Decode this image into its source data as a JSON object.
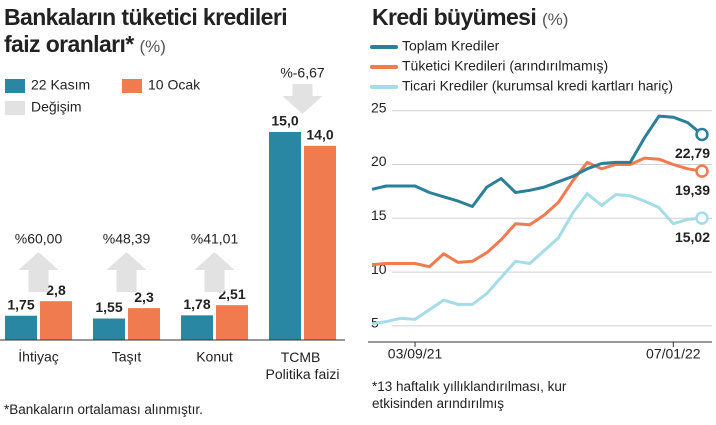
{
  "chart_data": [
    {
      "type": "bar",
      "title": "Bankaların tüketici kredileri faiz oranları*",
      "title_unit": "(%)",
      "categories": [
        "İhtiyaç",
        "Taşıt",
        "Konut",
        "TCMB Politika faizi"
      ],
      "series": [
        {
          "name": "22 Kasım",
          "color": "#2a87a3",
          "values": [
            1.75,
            1.55,
            1.78,
            15.0
          ],
          "value_labels": [
            "1,75",
            "1,55",
            "1,78",
            "15,0"
          ]
        },
        {
          "name": "10 Ocak",
          "color": "#f07b4f",
          "values": [
            2.8,
            2.3,
            2.51,
            14.0
          ],
          "value_labels": [
            "2,8",
            "2,3",
            "2,51",
            "14,0"
          ]
        }
      ],
      "change": {
        "name": "Değişim",
        "color": "#e2e2e2",
        "label_color": "#555555",
        "values": [
          60.0,
          48.39,
          41.01,
          -6.67
        ],
        "value_labels": [
          "%60,00",
          "%48,39",
          "%41,01",
          "%-6,67"
        ]
      },
      "footnote": "*Bankaların ortalaması alınmıştır."
    },
    {
      "type": "line",
      "title": "Kredi büyümesi",
      "title_unit": "(%)",
      "x": [
        null,
        null,
        null,
        "03/09/21",
        null,
        null,
        null,
        null,
        null,
        null,
        null,
        null,
        null,
        null,
        null,
        null,
        null,
        null,
        null,
        null,
        null,
        "07/01/22",
        null,
        null
      ],
      "ylim": [
        3.5,
        26
      ],
      "yticks": [
        5,
        10,
        15,
        20,
        25
      ],
      "grid": true,
      "series": [
        {
          "name": "Toplam Krediler",
          "color": "#2a7f99",
          "label_color": "#2a7f99",
          "values": [
            17.7,
            18.0,
            18.0,
            18.0,
            17.4,
            17.0,
            16.6,
            16.1,
            17.9,
            18.7,
            17.4,
            17.6,
            17.9,
            18.4,
            18.9,
            19.6,
            20.1,
            20.2,
            20.2,
            22.5,
            24.5,
            24.4,
            23.9,
            22.79
          ],
          "value_labels": [
            null,
            null,
            null,
            null,
            null,
            null,
            null,
            null,
            null,
            null,
            null,
            null,
            null,
            null,
            null,
            null,
            null,
            null,
            null,
            null,
            null,
            null,
            null,
            "22,79"
          ]
        },
        {
          "name": "Tüketici Kredileri (arındırılmamış)",
          "color": "#f07b4f",
          "label_color": "#f07b4f",
          "values": [
            10.7,
            10.8,
            10.8,
            10.8,
            10.5,
            11.7,
            10.9,
            11.0,
            11.8,
            13.0,
            14.5,
            14.4,
            15.3,
            16.5,
            18.5,
            20.2,
            19.6,
            20.0,
            20.0,
            20.6,
            20.5,
            20.0,
            19.6,
            19.39
          ],
          "value_labels": [
            null,
            null,
            null,
            null,
            null,
            null,
            null,
            null,
            null,
            null,
            null,
            null,
            null,
            null,
            null,
            null,
            null,
            null,
            null,
            null,
            null,
            null,
            null,
            "19,39"
          ]
        },
        {
          "name": "Ticari Krediler (kurumsal kredi kartları hariç)",
          "color": "#a6dce8",
          "label_color": "#8ccbd9",
          "values": [
            5.2,
            5.4,
            5.7,
            5.6,
            6.5,
            7.4,
            7.0,
            7.0,
            8.0,
            9.5,
            11.0,
            10.8,
            12.0,
            13.2,
            15.5,
            17.3,
            16.2,
            17.2,
            17.1,
            16.6,
            16.0,
            14.5,
            14.9,
            15.02
          ],
          "value_labels": [
            null,
            null,
            null,
            null,
            null,
            null,
            null,
            null,
            null,
            null,
            null,
            null,
            null,
            null,
            null,
            null,
            null,
            null,
            null,
            null,
            null,
            null,
            null,
            "15,02"
          ]
        }
      ],
      "footnote": "*13 haftalık yıllıklandırılması, kur etkisinden arındırılmış"
    }
  ]
}
